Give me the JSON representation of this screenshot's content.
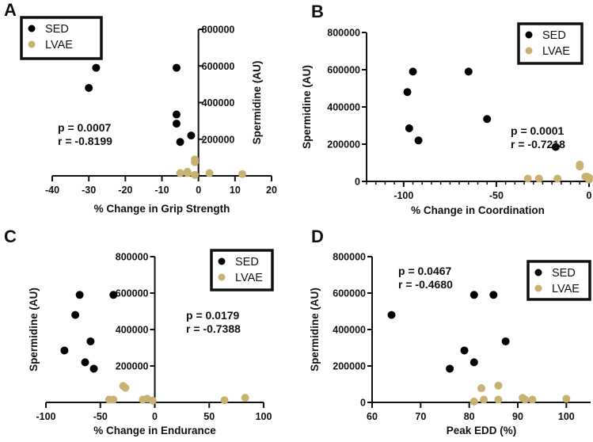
{
  "colors": {
    "SED": "#000000",
    "LVAE": "#c8b273"
  },
  "chart_data": [
    {
      "type": "scatter",
      "panel": "A",
      "xlabel": "% Change in Grip Strength",
      "ylabel": "Spermidine (AU)",
      "xlim": [
        -40,
        20
      ],
      "ylim": [
        0,
        800000
      ],
      "xticks": [
        -40,
        -30,
        -20,
        -10,
        0,
        10,
        20
      ],
      "yticks": [
        200000,
        400000,
        600000,
        800000
      ],
      "stats": [
        "p = 0.0007",
        "r = -0.8199"
      ],
      "legend": [
        "SED",
        "LVAE"
      ],
      "series": [
        {
          "name": "SED",
          "points": [
            [
              -28,
              590000
            ],
            [
              -30,
              480000
            ],
            [
              -6,
              590000
            ],
            [
              -6,
              335000
            ],
            [
              -6,
              285000
            ],
            [
              -2,
              220000
            ],
            [
              -5,
              185000
            ]
          ]
        },
        {
          "name": "LVAE",
          "points": [
            [
              -1,
              90000
            ],
            [
              -1,
              75000
            ],
            [
              -5,
              15000
            ],
            [
              -3,
              15000
            ],
            [
              -3,
              22000
            ],
            [
              -1,
              5000
            ],
            [
              3,
              15000
            ],
            [
              12,
              10000
            ]
          ]
        }
      ]
    },
    {
      "type": "scatter",
      "panel": "B",
      "xlabel": "% Change in Coordination",
      "ylabel": "Spermidine (AU)",
      "xlim": [
        -120,
        0
      ],
      "ylim": [
        0,
        800000
      ],
      "xticks": [
        -100,
        -50,
        0
      ],
      "yticks": [
        0,
        200000,
        400000,
        600000,
        800000
      ],
      "stats": [
        "p = 0.0001",
        "r = -0.7218"
      ],
      "legend": [
        "SED",
        "LVAE"
      ],
      "series": [
        {
          "name": "SED",
          "points": [
            [
              -98,
              480000
            ],
            [
              -95,
              590000
            ],
            [
              -97,
              285000
            ],
            [
              -92,
              220000
            ],
            [
              -65,
              590000
            ],
            [
              -55,
              335000
            ],
            [
              -18,
              185000
            ]
          ]
        },
        {
          "name": "LVAE",
          "points": [
            [
              -33,
              15000
            ],
            [
              -27,
              15000
            ],
            [
              -17,
              15000
            ],
            [
              -5,
              90000
            ],
            [
              -5,
              80000
            ],
            [
              -2,
              25000
            ],
            [
              0,
              20000
            ],
            [
              0,
              10000
            ],
            [
              -1,
              25000
            ]
          ]
        }
      ]
    },
    {
      "type": "scatter",
      "panel": "C",
      "xlabel": "% Change in Endurance",
      "ylabel": "Spermidine (AU)",
      "xlim": [
        -100,
        100
      ],
      "ylim": [
        0,
        800000
      ],
      "xticks": [
        -100,
        -50,
        0,
        50,
        100
      ],
      "yticks": [
        200000,
        400000,
        600000,
        800000
      ],
      "stats": [
        "p = 0.0179",
        "r = -0.7388"
      ],
      "legend": [
        "SED",
        "LVAE"
      ],
      "series": [
        {
          "name": "SED",
          "points": [
            [
              -83,
              285000
            ],
            [
              -73,
              480000
            ],
            [
              -69,
              590000
            ],
            [
              -38,
              590000
            ],
            [
              -59,
              335000
            ],
            [
              -64,
              220000
            ],
            [
              -56,
              185000
            ]
          ]
        },
        {
          "name": "LVAE",
          "points": [
            [
              -42,
              15000
            ],
            [
              -38,
              15000
            ],
            [
              -29,
              90000
            ],
            [
              -27,
              80000
            ],
            [
              -11,
              15000
            ],
            [
              -7,
              20000
            ],
            [
              -2,
              10000
            ],
            [
              64,
              12000
            ],
            [
              83,
              25000
            ]
          ]
        }
      ]
    },
    {
      "type": "scatter",
      "panel": "D",
      "xlabel": "Peak EDD (%)",
      "ylabel": "Spermidine (AU)",
      "xlim": [
        60,
        105
      ],
      "ylim": [
        0,
        800000
      ],
      "xticks": [
        60,
        70,
        80,
        90,
        100
      ],
      "yticks": [
        0,
        200000,
        400000,
        600000,
        800000
      ],
      "stats": [
        "p = 0.0467",
        "r = -0.4680"
      ],
      "legend": [
        "SED",
        "LVAE"
      ],
      "series": [
        {
          "name": "SED",
          "points": [
            [
              64,
              480000
            ],
            [
              76,
              185000
            ],
            [
              79,
              285000
            ],
            [
              81,
              590000
            ],
            [
              81,
              220000
            ],
            [
              85,
              590000
            ],
            [
              87.5,
              335000
            ]
          ]
        },
        {
          "name": "LVAE",
          "points": [
            [
              81,
              5000
            ],
            [
              82.5,
              78000
            ],
            [
              83,
              15000
            ],
            [
              86,
              92000
            ],
            [
              86,
              15000
            ],
            [
              91,
              25000
            ],
            [
              91.5,
              15000
            ],
            [
              93,
              15000
            ],
            [
              100,
              20000
            ]
          ]
        }
      ]
    }
  ]
}
